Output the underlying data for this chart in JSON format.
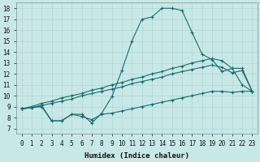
{
  "xlabel": "Humidex (Indice chaleur)",
  "xlim": [
    -0.5,
    23.5
  ],
  "ylim": [
    6.5,
    18.5
  ],
  "xticks": [
    0,
    1,
    2,
    3,
    4,
    5,
    6,
    7,
    8,
    9,
    10,
    11,
    12,
    13,
    14,
    15,
    16,
    17,
    18,
    19,
    20,
    21,
    22,
    23
  ],
  "yticks": [
    7,
    8,
    9,
    10,
    11,
    12,
    13,
    14,
    15,
    16,
    17,
    18
  ],
  "bg_color": "#c8e8e8",
  "grid_color": "#b0d4d4",
  "line_color": "#1a6b6b",
  "line1_x": [
    0,
    1,
    2,
    3,
    4,
    5,
    6,
    7,
    8,
    9,
    10,
    11,
    12,
    13,
    14,
    15,
    16,
    17,
    18,
    19,
    20,
    21,
    22,
    23
  ],
  "line1_y": [
    8.8,
    8.9,
    9.1,
    7.7,
    7.7,
    8.3,
    8.3,
    7.5,
    8.4,
    9.9,
    12.3,
    15.0,
    17.0,
    17.2,
    18.0,
    18.0,
    17.8,
    15.8,
    13.8,
    13.3,
    12.2,
    12.5,
    11.0,
    10.4
  ],
  "line2_x": [
    0,
    1,
    2,
    3,
    4,
    5,
    6,
    7,
    8,
    9,
    10,
    11,
    12,
    13,
    14,
    15,
    16,
    17,
    18,
    19,
    20,
    21,
    22,
    23
  ],
  "line2_y": [
    8.8,
    9.0,
    9.3,
    9.5,
    9.8,
    10.0,
    10.2,
    10.5,
    10.7,
    11.0,
    11.2,
    11.5,
    11.7,
    12.0,
    12.2,
    12.5,
    12.7,
    13.0,
    13.2,
    13.4,
    13.2,
    12.5,
    12.5,
    10.4
  ],
  "line3_x": [
    0,
    1,
    2,
    3,
    4,
    5,
    6,
    7,
    8,
    9,
    10,
    11,
    12,
    13,
    14,
    15,
    16,
    17,
    18,
    19,
    20,
    21,
    22,
    23
  ],
  "line3_y": [
    8.8,
    8.9,
    9.1,
    9.3,
    9.5,
    9.7,
    10.0,
    10.2,
    10.4,
    10.6,
    10.8,
    11.1,
    11.3,
    11.5,
    11.7,
    12.0,
    12.2,
    12.4,
    12.6,
    12.8,
    12.6,
    12.1,
    12.3,
    10.4
  ],
  "line4_x": [
    0,
    1,
    2,
    3,
    4,
    5,
    6,
    7,
    8,
    9,
    10,
    11,
    12,
    13,
    14,
    15,
    16,
    17,
    18,
    19,
    20,
    21,
    22,
    23
  ],
  "line4_y": [
    8.8,
    8.9,
    9.0,
    7.7,
    7.7,
    8.3,
    8.1,
    7.8,
    8.3,
    8.4,
    8.6,
    8.8,
    9.0,
    9.2,
    9.4,
    9.6,
    9.8,
    10.0,
    10.2,
    10.4,
    10.4,
    10.3,
    10.4,
    10.4
  ]
}
